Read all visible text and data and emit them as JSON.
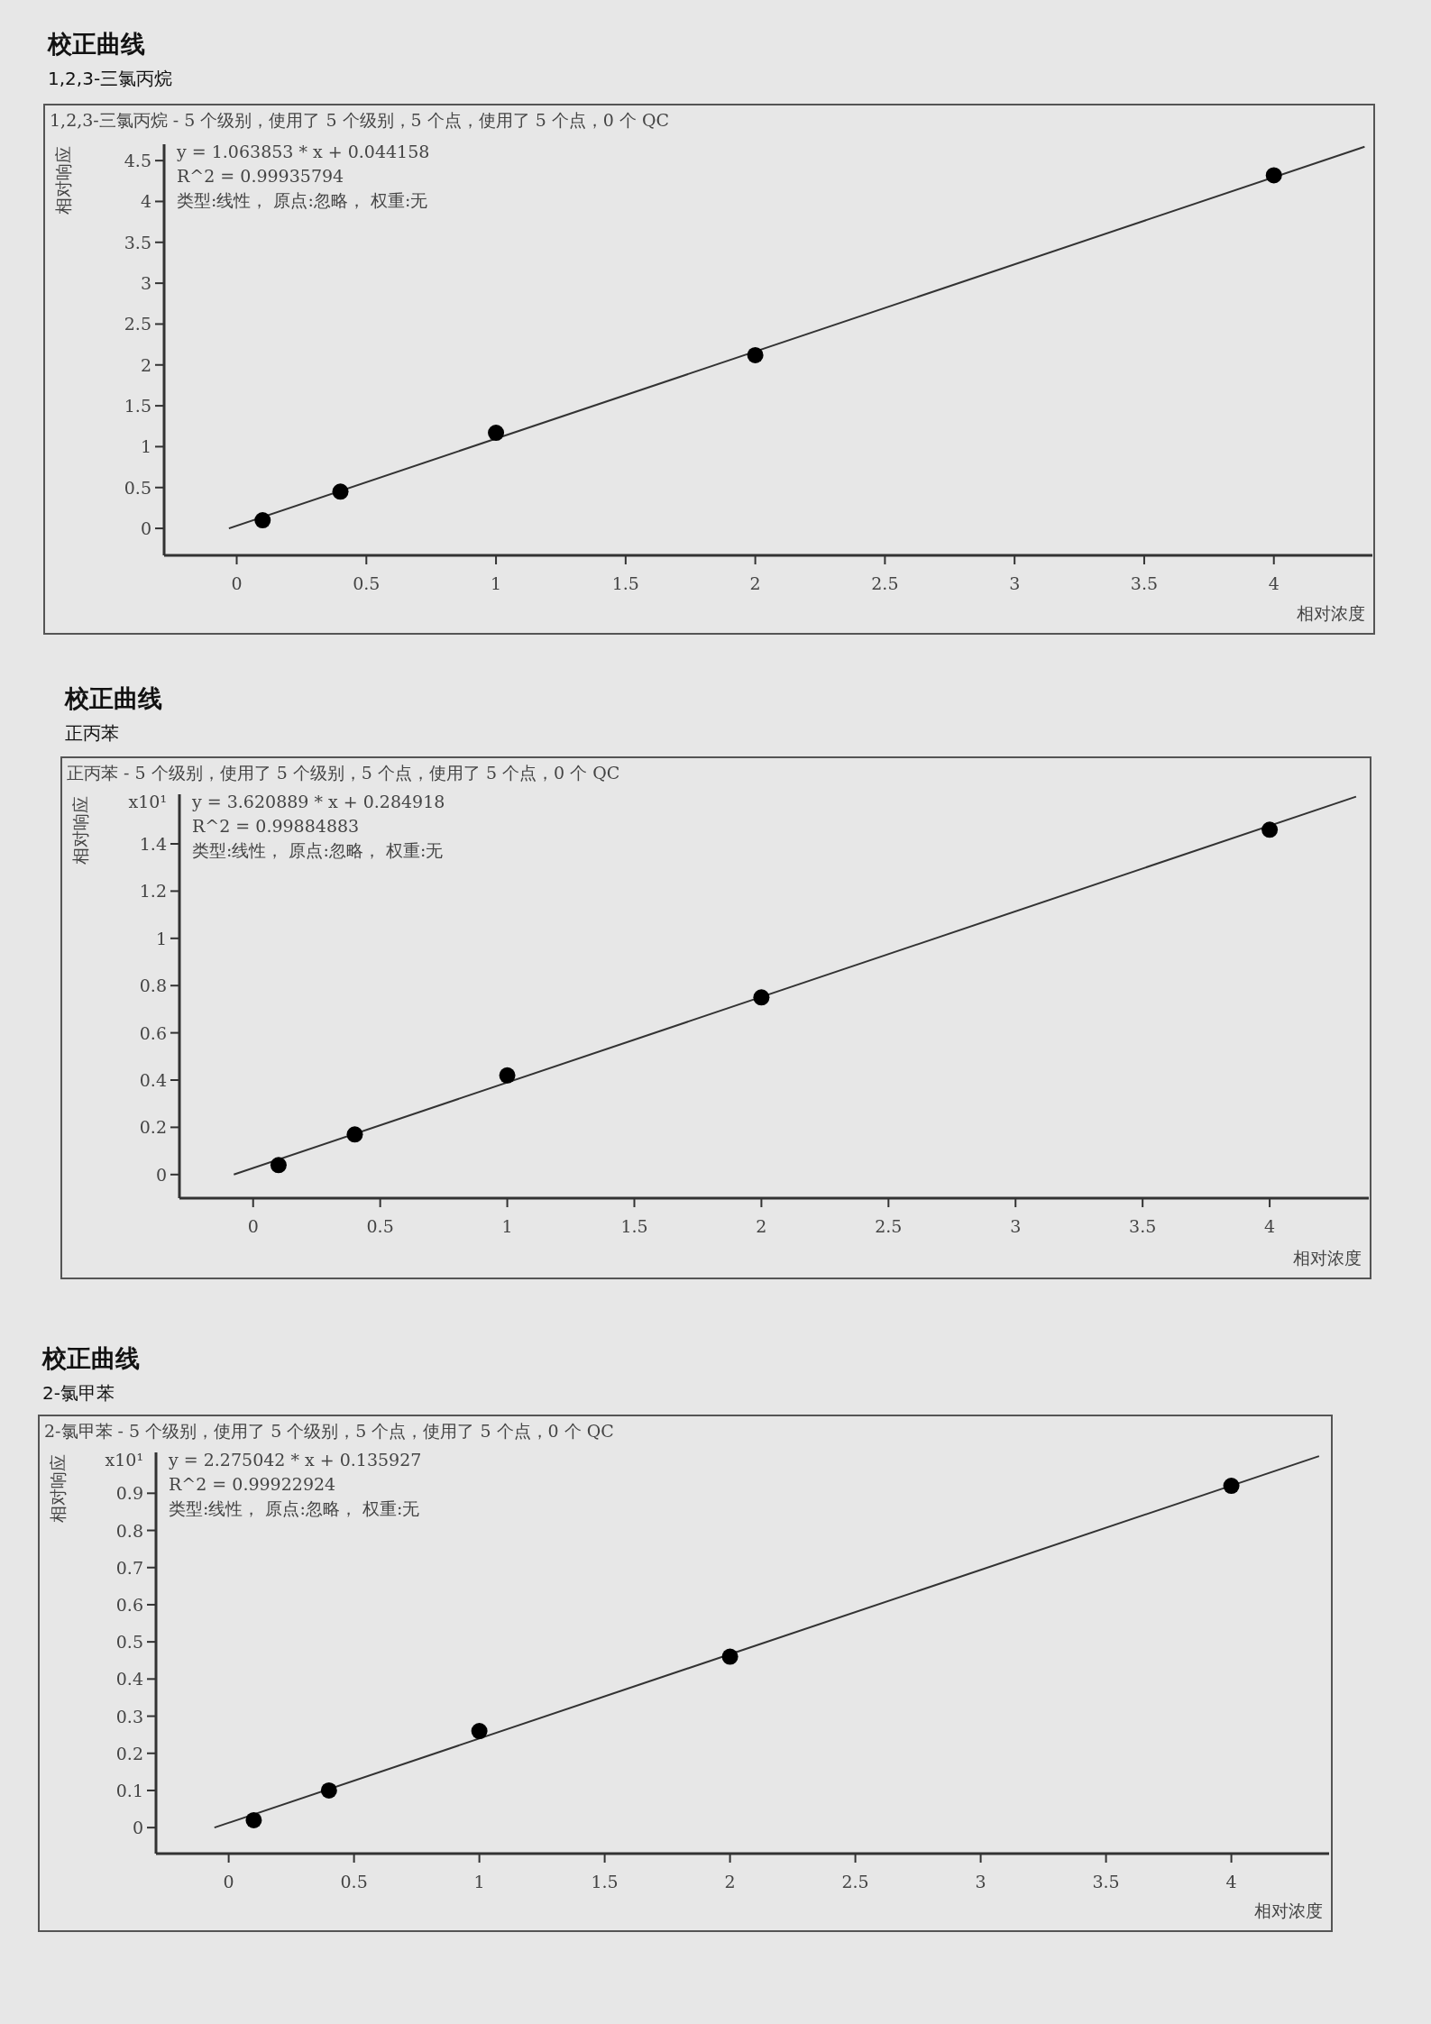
{
  "chart_data": [
    {
      "type": "scatter",
      "title": "校正曲线",
      "subtitle": "1,2,3-三氯丙烷",
      "xlabel": "相对浓度",
      "ylabel": "相对响应",
      "annotations": [
        "1,2,3-三氯丙烷 - 5 个级别，使用了 5 个级别，5 个点，使用了 5 个点，0 个 QC",
        "y = 1.063853 * x  + 0.044158",
        "R^2 = 0.99935794",
        "类型:线性， 原点:忽略， 权重:无"
      ],
      "xlim": [
        -0.28,
        4.38
      ],
      "ylim": [
        -0.33,
        4.7
      ],
      "xticks": [
        0,
        0.5,
        1,
        1.5,
        2,
        2.5,
        3,
        3.5,
        4
      ],
      "yticks": [
        0,
        0.5,
        1,
        1.5,
        2,
        2.5,
        3,
        3.5,
        4,
        4.5
      ],
      "series": [
        {
          "type": "line",
          "color": "#333333",
          "marker": "none",
          "x": [
            -0.03,
            4.35
          ],
          "values": [
            0.0,
            4.67
          ]
        },
        {
          "type": "scatter",
          "color": "#000000",
          "marker": "circle",
          "x": [
            0.1,
            0.4,
            1,
            2,
            4
          ],
          "values": [
            0.1,
            0.45,
            1.17,
            2.12,
            4.32
          ]
        }
      ]
    },
    {
      "type": "scatter",
      "title": "校正曲线",
      "subtitle": "正丙苯",
      "xlabel": "相对浓度",
      "ylabel": "相对响应",
      "annotations": [
        "正丙苯 - 5 个级别，使用了 5 个级别，5 个点，使用了 5 个点，0 个 QC",
        "y = 3.620889 * x  + 0.284918",
        "R^2 = 0.99884883",
        "类型:线性， 原点:忽略， 权重:无",
        "x10¹"
      ],
      "xlim": [
        -0.29,
        4.39
      ],
      "ylim": [
        -0.1,
        1.61
      ],
      "xticks": [
        0,
        0.5,
        1,
        1.5,
        2,
        2.5,
        3,
        3.5,
        4
      ],
      "yticks": [
        0,
        0.2,
        0.4,
        0.6,
        0.8,
        1,
        1.2,
        1.4
      ],
      "series": [
        {
          "type": "line",
          "color": "#333333",
          "marker": "none",
          "x": [
            -0.076,
            4.34
          ],
          "values": [
            0.0,
            1.6
          ]
        },
        {
          "type": "scatter",
          "color": "#000000",
          "marker": "circle",
          "x": [
            0.1,
            0.4,
            1,
            2,
            4
          ],
          "values": [
            0.04,
            0.17,
            0.42,
            0.75,
            1.46
          ]
        }
      ]
    },
    {
      "type": "scatter",
      "title": "校正曲线",
      "subtitle": "2-氯甲苯",
      "xlabel": "相对浓度",
      "ylabel": "相对响应",
      "annotations": [
        "2-氯甲苯 - 5 个级别，使用了 5 个级别，5 个点，使用了 5 个点，0 个 QC",
        "y = 2.275042 * x  + 0.135927",
        "R^2 = 0.99922924",
        "类型:线性， 原点:忽略， 权重:无",
        "x10¹"
      ],
      "xlim": [
        -0.29,
        4.39
      ],
      "ylim": [
        -0.07,
        1.01
      ],
      "xticks": [
        0,
        0.5,
        1,
        1.5,
        2,
        2.5,
        3,
        3.5,
        4
      ],
      "yticks": [
        0,
        0.1,
        0.2,
        0.3,
        0.4,
        0.5,
        0.6,
        0.7,
        0.8,
        0.9
      ],
      "series": [
        {
          "type": "line",
          "color": "#333333",
          "marker": "none",
          "x": [
            -0.057,
            4.35
          ],
          "values": [
            0.0,
            1.0
          ]
        },
        {
          "type": "scatter",
          "color": "#000000",
          "marker": "circle",
          "x": [
            0.1,
            0.4,
            1,
            2,
            4
          ],
          "values": [
            0.02,
            0.1,
            0.26,
            0.46,
            0.92
          ]
        }
      ]
    }
  ]
}
